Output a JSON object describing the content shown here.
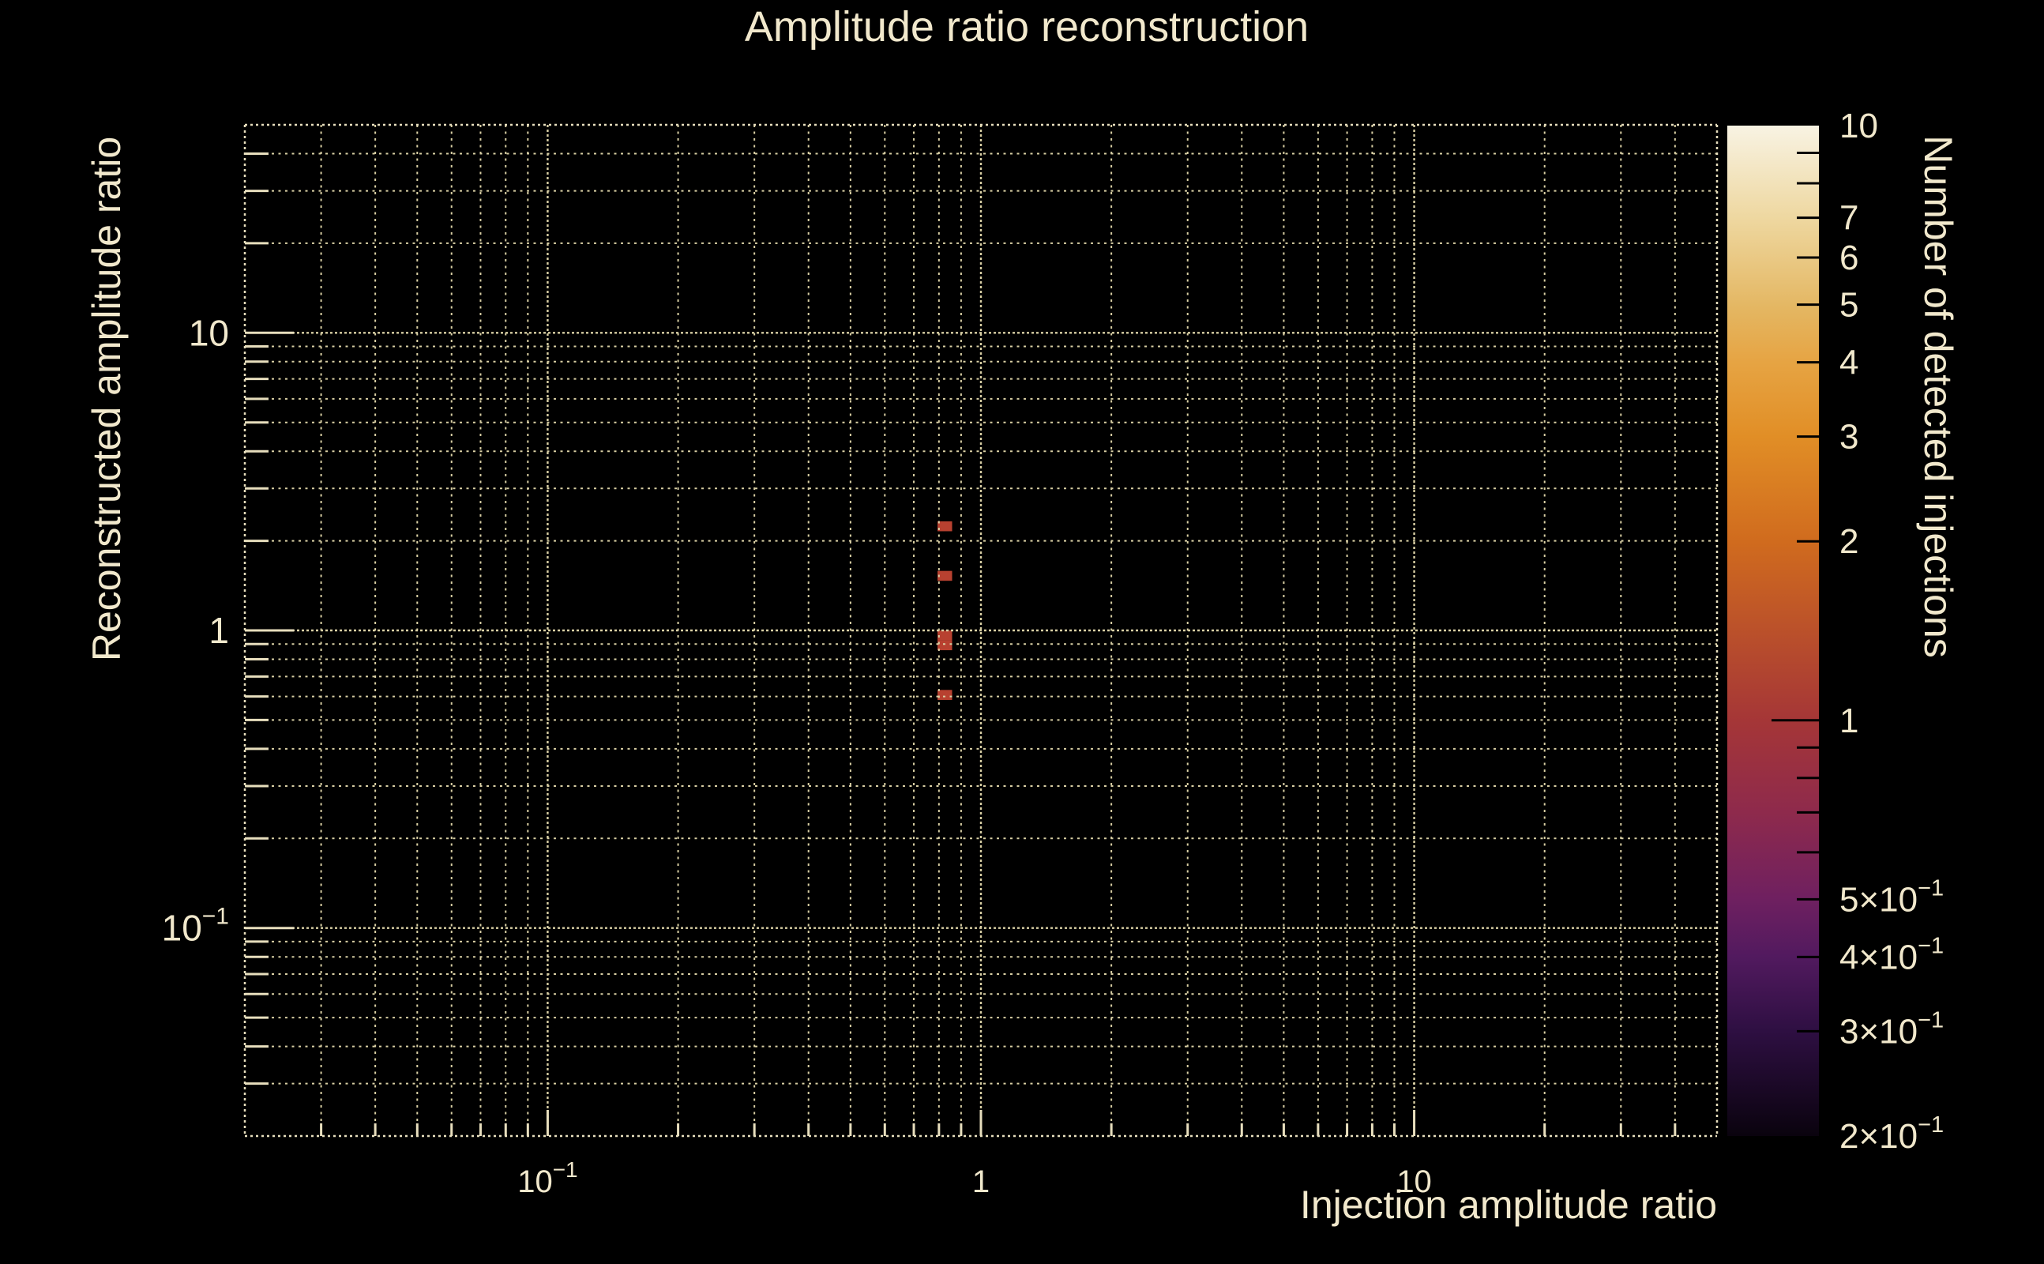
{
  "title": "Amplitude ratio reconstruction",
  "colors": {
    "background": "#000000",
    "text": "#f1e8cc",
    "grid": "#d9cfa4",
    "spine": "#e7debd",
    "cell": "#b84130",
    "colorbar_tick": "#000000"
  },
  "chart_data": {
    "type": "heatmap",
    "title": "Amplitude ratio reconstruction",
    "xlabel": "Injection amplitude ratio",
    "ylabel": "Reconstructed amplitude ratio",
    "colorbar_label": "Number of detected injections",
    "xscale": "log",
    "yscale": "log",
    "xlim": [
      0.02,
      50
    ],
    "ylim": [
      0.02,
      50
    ],
    "grid": true,
    "x_labeled_ticks": [
      0.1,
      1,
      10
    ],
    "y_labeled_ticks": [
      0.1,
      1,
      10
    ],
    "cells": [
      {
        "x": [
          0.794,
          0.858
        ],
        "y": [
          2.154,
          2.326
        ],
        "count": 1
      },
      {
        "x": [
          0.794,
          0.858
        ],
        "y": [
          1.468,
          1.585
        ],
        "count": 1
      },
      {
        "x": [
          0.794,
          0.858
        ],
        "y": [
          0.926,
          1.0
        ],
        "count": 1
      },
      {
        "x": [
          0.794,
          0.858
        ],
        "y": [
          0.858,
          0.926
        ],
        "count": 1
      },
      {
        "x": [
          0.794,
          0.858
        ],
        "y": [
          0.584,
          0.631
        ],
        "count": 1
      }
    ],
    "colorbar": {
      "range": [
        0.2,
        10
      ],
      "scale": "log",
      "labeled_ticks": [
        10,
        7,
        6,
        5,
        4,
        3,
        2,
        1,
        0.5,
        0.4,
        0.3,
        0.2
      ],
      "unlabeled_ticks": [
        9,
        8,
        0.9,
        0.8,
        0.7,
        0.6
      ],
      "major_ticks": [
        1
      ],
      "gradient_stops": [
        {
          "pos": 0.0,
          "color": "#0a030e"
        },
        {
          "pos": 0.104,
          "color": "#2e0f42"
        },
        {
          "pos": 0.178,
          "color": "#521a5f"
        },
        {
          "pos": 0.235,
          "color": "#6f2060"
        },
        {
          "pos": 0.32,
          "color": "#8e2a4c"
        },
        {
          "pos": 0.411,
          "color": "#a53637"
        },
        {
          "pos": 0.588,
          "color": "#d06b1e"
        },
        {
          "pos": 0.692,
          "color": "#e18e26"
        },
        {
          "pos": 0.766,
          "color": "#e6a443"
        },
        {
          "pos": 0.821,
          "color": "#e4b763"
        },
        {
          "pos": 0.907,
          "color": "#eed79f"
        },
        {
          "pos": 1.0,
          "color": "#f8f3e3"
        }
      ]
    }
  }
}
